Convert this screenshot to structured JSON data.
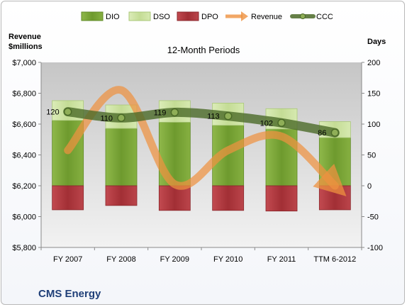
{
  "chart_data": {
    "type": "bar",
    "title": "12-Month Periods",
    "company": "CMS Energy",
    "left_axis": {
      "label_line1": "Revenue",
      "label_line2": "$millions",
      "range": [
        5800,
        7000
      ],
      "ticks": [
        "$5,800",
        "$6,000",
        "$6,200",
        "$6,400",
        "$6,600",
        "$6,800",
        "$7,000"
      ],
      "tick_values": [
        5800,
        6000,
        6200,
        6400,
        6600,
        6800,
        7000
      ]
    },
    "right_axis": {
      "label": "Days",
      "range": [
        -100,
        200
      ],
      "ticks": [
        "-100",
        "-50",
        "0",
        "50",
        "100",
        "150",
        "200"
      ],
      "tick_values": [
        -100,
        -50,
        0,
        50,
        100,
        150,
        200
      ]
    },
    "categories": [
      "FY 2007",
      "FY 2008",
      "FY 2009",
      "FY 2010",
      "FY 2011",
      "TTM 6-2012"
    ],
    "legend": [
      "DIO",
      "DSO",
      "DPO",
      "Revenue",
      "CCC"
    ],
    "legend_position": "top",
    "series": [
      {
        "name": "DIO",
        "axis": "right",
        "values": [
          106,
          93,
          103,
          98,
          92,
          78
        ]
      },
      {
        "name": "DSO",
        "axis": "right",
        "values": [
          32,
          38,
          35,
          36,
          33,
          26
        ]
      },
      {
        "name": "DPO",
        "axis": "right",
        "values": [
          -39,
          -32,
          -40,
          -40,
          -41,
          -39
        ]
      },
      {
        "name": "Revenue",
        "axis": "left",
        "values": [
          6430,
          6820,
          6210,
          6430,
          6520,
          6200
        ]
      },
      {
        "name": "CCC",
        "axis": "right",
        "values": [
          120,
          110,
          119,
          113,
          102,
          86
        ]
      }
    ],
    "ccc_labels": [
      "120",
      "110",
      "119",
      "113",
      "102",
      "86"
    ],
    "colors": {
      "DIO": "#7aa23a",
      "DSO": "#cfe3a6",
      "DPO": "#b0373d",
      "Revenue": "#ee9140",
      "CCC": "#4b6a28"
    },
    "grid": false
  }
}
